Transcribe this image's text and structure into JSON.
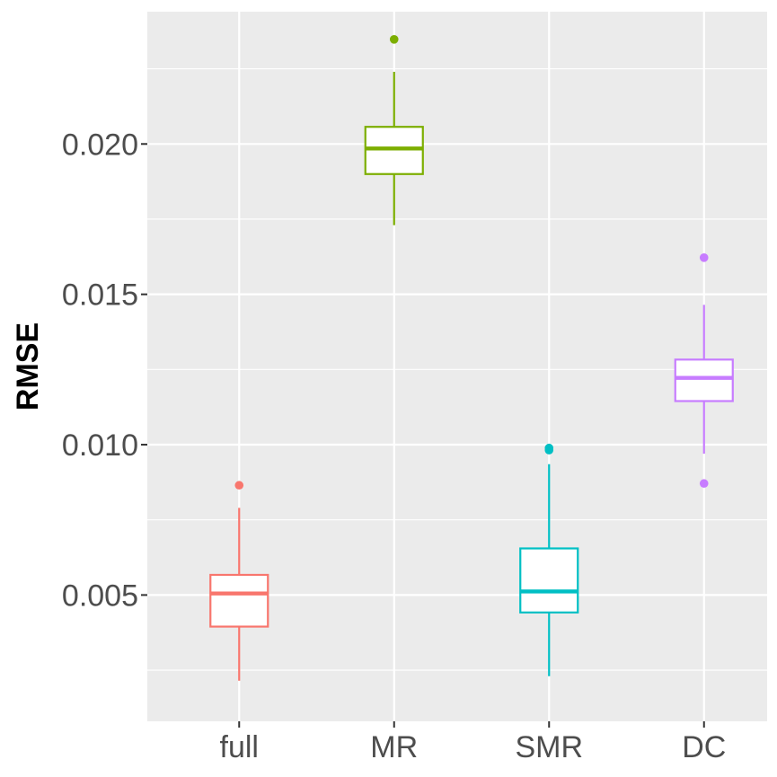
{
  "chart_data": {
    "type": "boxplot",
    "title": "",
    "xlabel": "",
    "ylabel": "RMSE",
    "ylim": [
      0.0008,
      0.0244
    ],
    "yticks": [
      0.005,
      0.01,
      0.015,
      0.02
    ],
    "ytick_labels": [
      "0.005",
      "0.010",
      "0.015",
      "0.020"
    ],
    "y_minor_ticks": [
      0.0025,
      0.0075,
      0.0125,
      0.0175,
      0.0225
    ],
    "categories": [
      "full",
      "MR",
      "SMR",
      "DC"
    ],
    "colors": [
      "#f8766d",
      "#7cae00",
      "#00bfc4",
      "#c77cff"
    ],
    "panel_background": "#ebebeb",
    "grid_color": "#ffffff",
    "grid": true,
    "legend": "none",
    "boxes": [
      {
        "category": "full",
        "whisker_low": 0.00215,
        "q1": 0.00395,
        "median": 0.00505,
        "q3": 0.00567,
        "whisker_high": 0.0079,
        "outliers": [
          0.00865
        ]
      },
      {
        "category": "MR",
        "whisker_low": 0.0173,
        "q1": 0.019,
        "median": 0.01985,
        "q3": 0.02057,
        "whisker_high": 0.0224,
        "outliers": [
          0.02348
        ]
      },
      {
        "category": "SMR",
        "whisker_low": 0.0023,
        "q1": 0.00442,
        "median": 0.00512,
        "q3": 0.00655,
        "whisker_high": 0.00935,
        "outliers": [
          0.00982,
          0.00989
        ]
      },
      {
        "category": "DC",
        "whisker_low": 0.0097,
        "q1": 0.01145,
        "median": 0.01222,
        "q3": 0.01283,
        "whisker_high": 0.01465,
        "outliers": [
          0.01622,
          0.00871
        ]
      }
    ]
  }
}
